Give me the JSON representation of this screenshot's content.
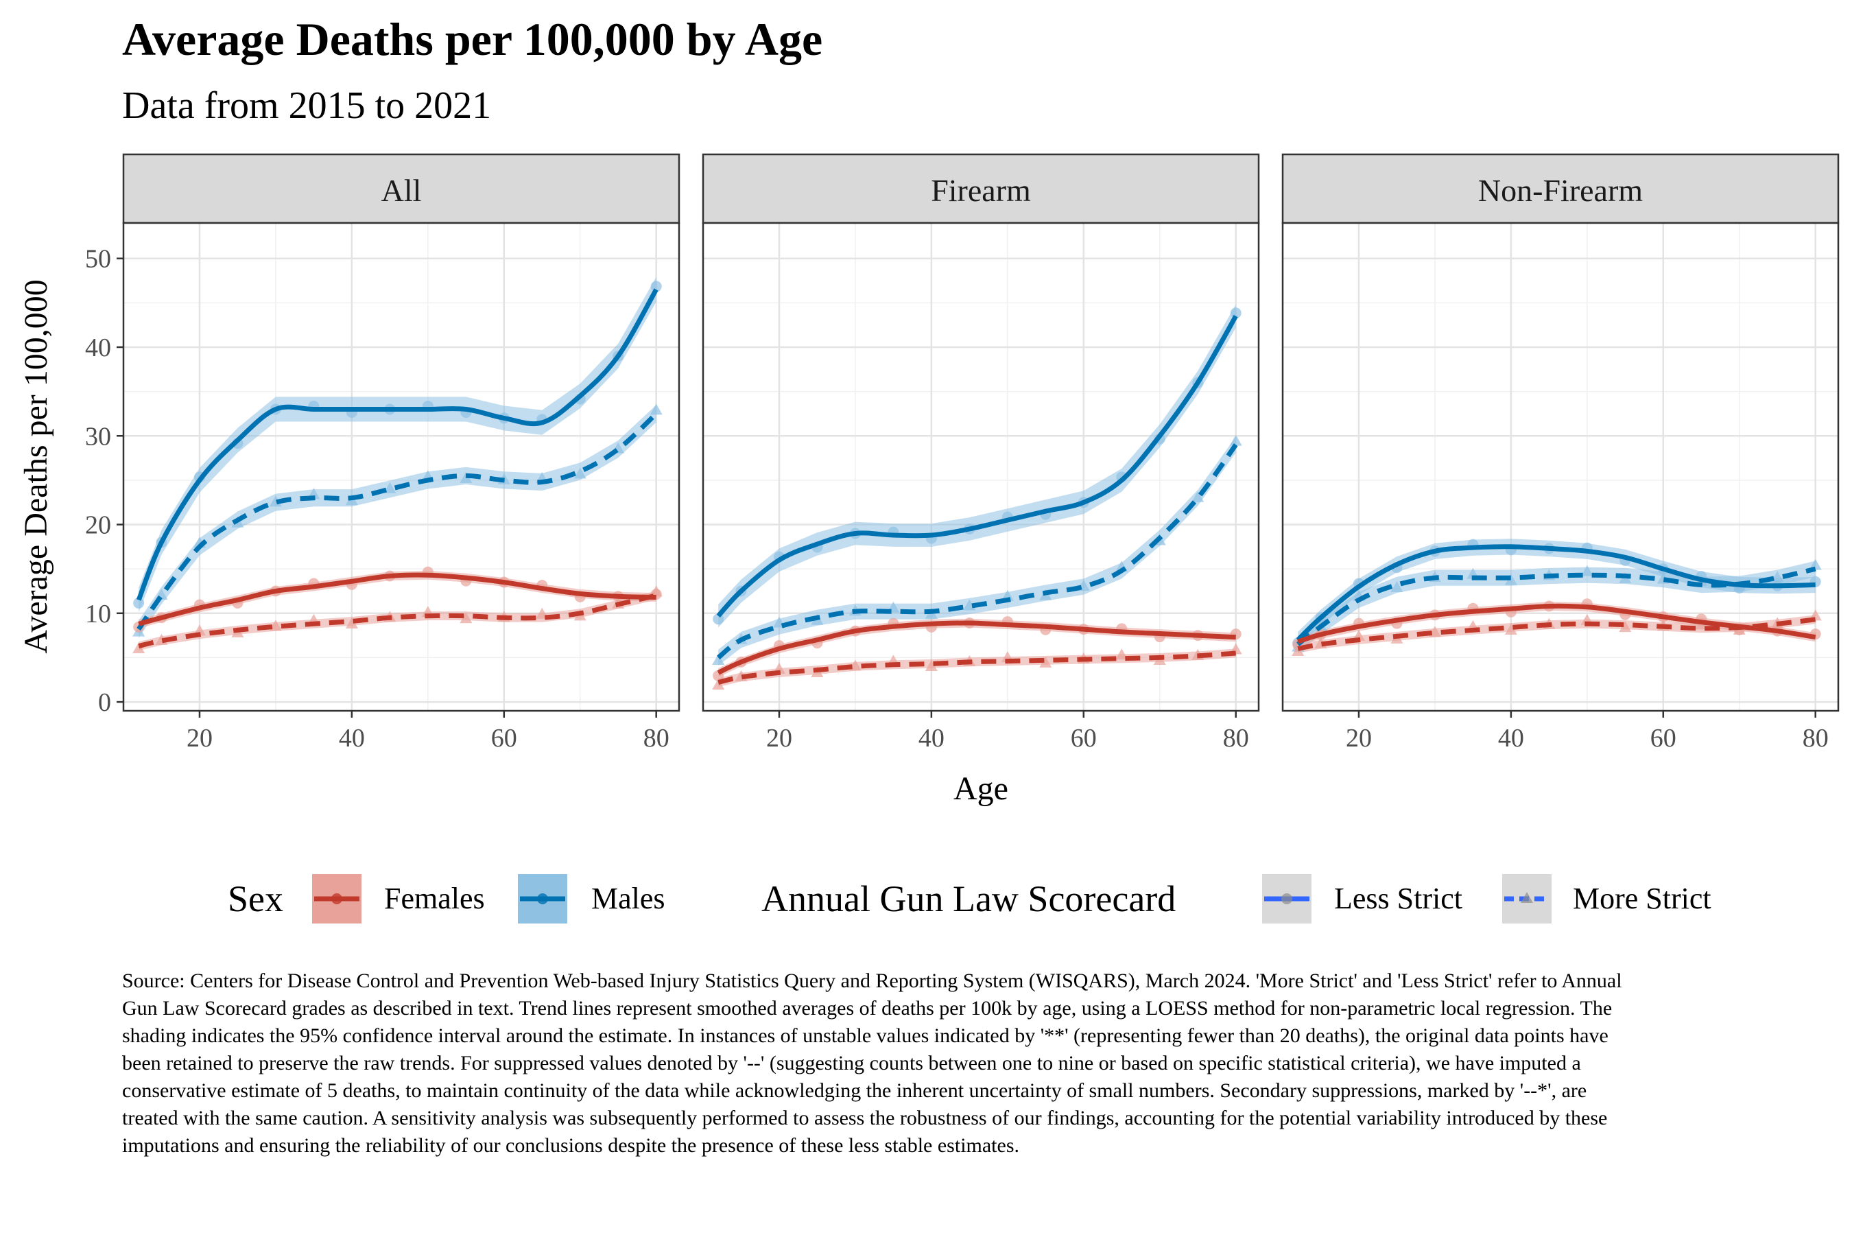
{
  "title": "Average Deaths per 100,000 by Age",
  "subtitle": "Data from 2015 to 2021",
  "caption": "Source: Centers for Disease Control and Prevention Web-based Injury Statistics Query and Reporting System (WISQARS), March 2024. 'More Strict' and 'Less Strict' refer to Annual Gun Law Scorecard grades as described in text. Trend lines represent smoothed averages of deaths per 100k by age, using a LOESS method for non-parametric local regression. The shading indicates the 95% confidence interval around the estimate. In instances of unstable values indicated by '**' (representing fewer than 20 deaths), the original data points have been retained to preserve the raw trends. For suppressed values denoted by '--' (suggesting counts between one to nine or based on specific statistical criteria), we have imputed a conservative estimate of 5 deaths, to maintain continuity of the data while acknowledging the inherent uncertainty of small numbers. Secondary suppressions, marked by '--*', are treated with the same caution. A sensitivity analysis was subsequently performed to assess the robustness of our findings, accounting for the potential variability introduced by these imputations and ensuring the reliability of our conclusions despite the presence of these less stable estimates.",
  "legend": {
    "sex_title": "Sex",
    "sex_items": [
      {
        "label": "Females",
        "color": "#c0392b"
      },
      {
        "label": "Males",
        "color": "#0072b2"
      }
    ],
    "scorecard_title": "Annual Gun Law Scorecard",
    "scorecard_items": [
      {
        "label": "Less Strict",
        "line": "solid",
        "color": "#3366ff"
      },
      {
        "label": "More Strict",
        "line": "dashed",
        "color": "#3366ff"
      }
    ]
  },
  "chart_data": {
    "type": "line",
    "xlabel": "Age",
    "ylabel": "Average Deaths per 100,000",
    "xlim": [
      10,
      83
    ],
    "ylim": [
      -1,
      54
    ],
    "x_ticks": [
      20,
      40,
      60,
      80
    ],
    "y_ticks": [
      0,
      10,
      20,
      30,
      40,
      50
    ],
    "grid": true,
    "legend_position": "bottom",
    "colors": {
      "Females": "#c0392b",
      "Males": "#0072b2"
    },
    "x": [
      12,
      15,
      20,
      25,
      30,
      35,
      40,
      45,
      50,
      55,
      60,
      65,
      70,
      75,
      80
    ],
    "panels": [
      {
        "facet": "All",
        "series": [
          {
            "sex": "Males",
            "scorecard": "Less Strict",
            "values": [
              11.5,
              18,
              25,
              29.5,
              33,
              33,
              33,
              33,
              33,
              33,
              32,
              31.5,
              34.5,
              39,
              46.5
            ]
          },
          {
            "sex": "Males",
            "scorecard": "More Strict",
            "values": [
              8.2,
              12,
              17.5,
              20.5,
              22.5,
              23,
              23,
              24,
              25,
              25.5,
              25,
              24.8,
              26,
              28.5,
              32.5
            ]
          },
          {
            "sex": "Females",
            "scorecard": "Less Strict",
            "values": [
              8.8,
              9.5,
              10.6,
              11.5,
              12.5,
              13,
              13.6,
              14.2,
              14.3,
              14,
              13.5,
              12.8,
              12.2,
              11.9,
              11.8
            ]
          },
          {
            "sex": "Females",
            "scorecard": "More Strict",
            "values": [
              6.3,
              6.9,
              7.6,
              8.1,
              8.5,
              8.8,
              9.1,
              9.5,
              9.7,
              9.7,
              9.5,
              9.5,
              10,
              11,
              12
            ]
          }
        ]
      },
      {
        "facet": "Firearm",
        "series": [
          {
            "sex": "Males",
            "scorecard": "Less Strict",
            "values": [
              9.7,
              12.5,
              16,
              17.8,
              19,
              18.8,
              18.8,
              19.5,
              20.5,
              21.5,
              22.5,
              25,
              30,
              36,
              43.5
            ]
          },
          {
            "sex": "Males",
            "scorecard": "More Strict",
            "values": [
              5,
              7,
              8.5,
              9.5,
              10.2,
              10.2,
              10.2,
              10.8,
              11.5,
              12.3,
              13,
              14.8,
              18.5,
              23,
              29
            ]
          },
          {
            "sex": "Females",
            "scorecard": "Less Strict",
            "values": [
              3.3,
              4.5,
              6,
              7,
              8,
              8.5,
              8.8,
              8.9,
              8.7,
              8.5,
              8.2,
              7.9,
              7.7,
              7.5,
              7.3
            ]
          },
          {
            "sex": "Females",
            "scorecard": "More Strict",
            "values": [
              2.2,
              2.8,
              3.3,
              3.6,
              4,
              4.2,
              4.3,
              4.5,
              4.6,
              4.7,
              4.8,
              4.9,
              5,
              5.2,
              5.5
            ]
          }
        ]
      },
      {
        "facet": "Non-Firearm",
        "series": [
          {
            "sex": "Males",
            "scorecard": "Less Strict",
            "values": [
              7,
              9.5,
              13,
              15.5,
              17,
              17.4,
              17.5,
              17.3,
              17,
              16.3,
              15,
              13.8,
              13.2,
              13.1,
              13.2
            ]
          },
          {
            "sex": "Males",
            "scorecard": "More Strict",
            "values": [
              6.5,
              8.5,
              11.5,
              13.2,
              14,
              14,
              14,
              14.2,
              14.3,
              14.2,
              13.8,
              13.2,
              13.3,
              14,
              15
            ]
          },
          {
            "sex": "Females",
            "scorecard": "Less Strict",
            "values": [
              6.8,
              7.6,
              8.5,
              9.2,
              9.8,
              10.2,
              10.5,
              10.8,
              10.7,
              10.2,
              9.6,
              9,
              8.5,
              8,
              7.3
            ]
          },
          {
            "sex": "Females",
            "scorecard": "More Strict",
            "values": [
              6,
              6.5,
              7,
              7.4,
              7.8,
              8.1,
              8.4,
              8.7,
              8.8,
              8.7,
              8.5,
              8.3,
              8.4,
              8.8,
              9.3
            ]
          }
        ]
      }
    ]
  }
}
